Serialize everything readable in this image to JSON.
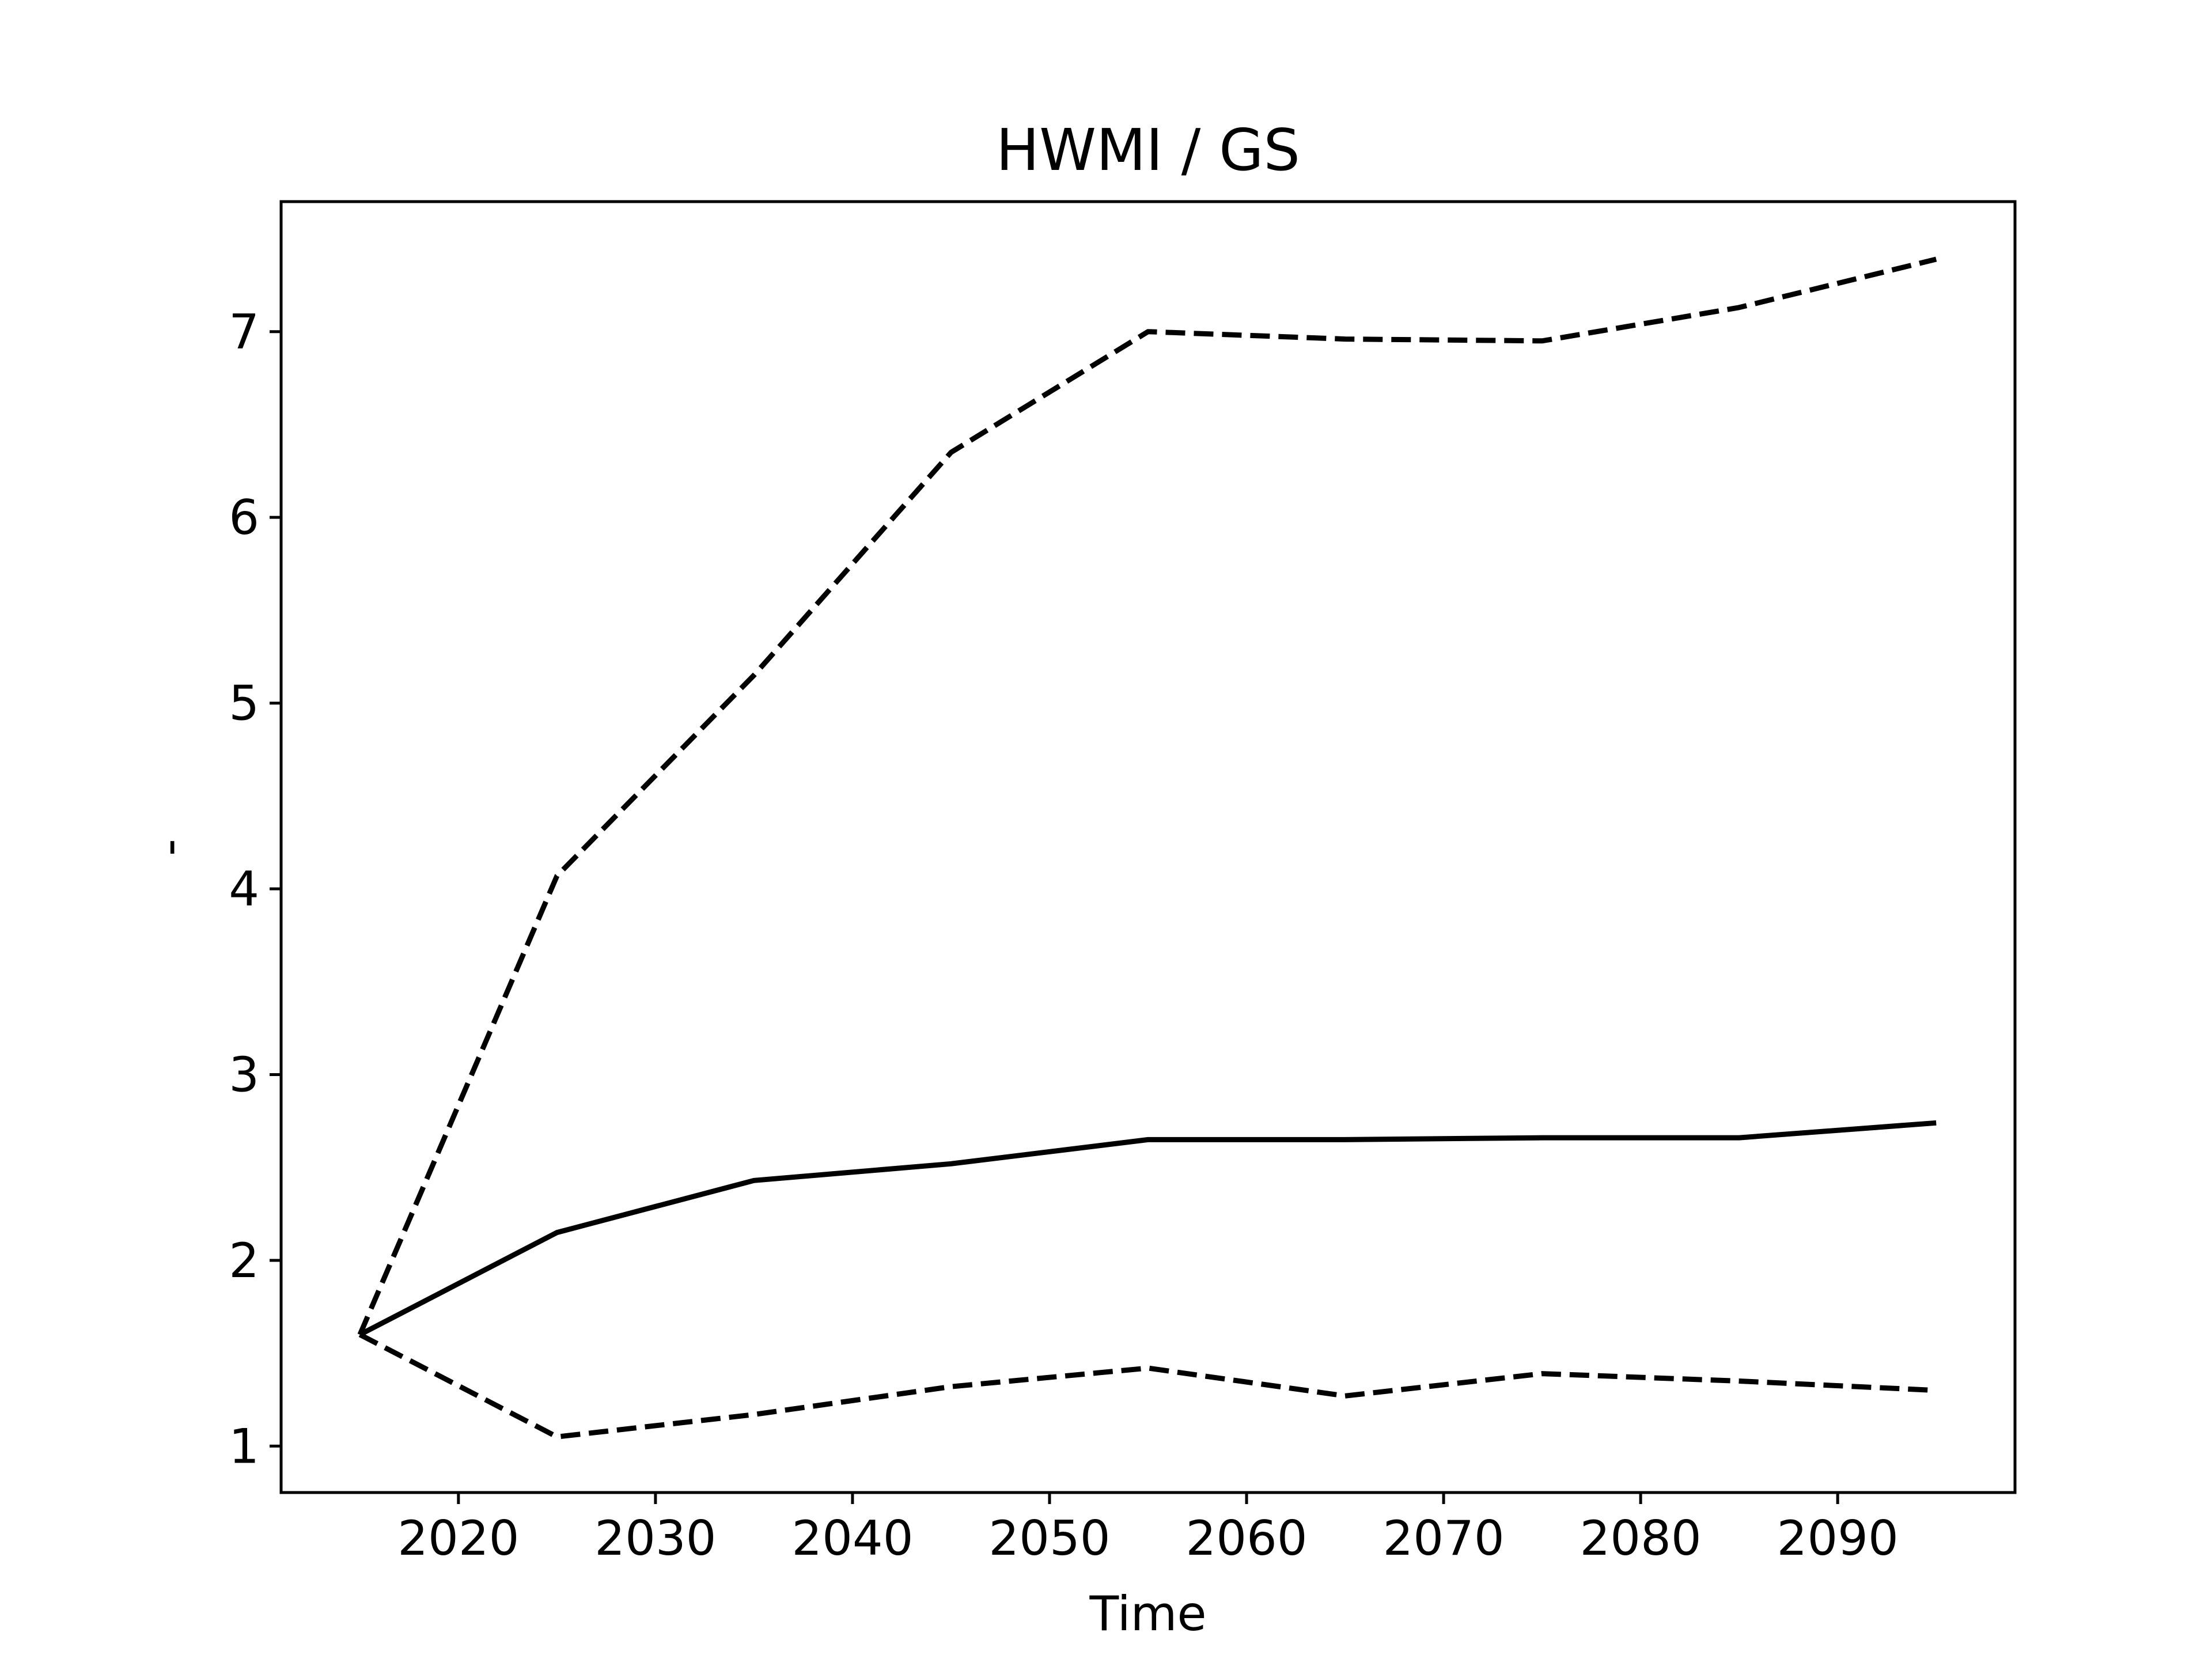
{
  "chart_data": {
    "type": "line",
    "title": "HWMI / GS",
    "xlabel": "Time",
    "ylabel": "-",
    "xlim": [
      2011,
      2099
    ],
    "ylim": [
      0.75,
      7.7
    ],
    "x_ticks": [
      2020,
      2030,
      2040,
      2050,
      2060,
      2070,
      2080,
      2090
    ],
    "y_ticks": [
      1,
      2,
      3,
      4,
      5,
      6,
      7
    ],
    "grid": false,
    "legend": "none",
    "series": [
      {
        "style": "dashed",
        "color": "#000000",
        "x": [
          2015,
          2025,
          2035,
          2045,
          2055,
          2065,
          2075,
          2085,
          2095
        ],
        "y": [
          1.6,
          4.07,
          5.15,
          6.35,
          7.0,
          6.96,
          6.95,
          7.13,
          7.39
        ]
      },
      {
        "style": "solid",
        "color": "#000000",
        "x": [
          2015,
          2025,
          2035,
          2045,
          2055,
          2065,
          2075,
          2085,
          2095
        ],
        "y": [
          1.6,
          2.15,
          2.43,
          2.52,
          2.65,
          2.65,
          2.66,
          2.66,
          2.74
        ]
      },
      {
        "style": "dashed",
        "color": "#000000",
        "x": [
          2015,
          2025,
          2035,
          2045,
          2055,
          2065,
          2075,
          2085,
          2095
        ],
        "y": [
          1.6,
          1.05,
          1.17,
          1.32,
          1.42,
          1.27,
          1.39,
          1.35,
          1.3
        ]
      }
    ]
  }
}
